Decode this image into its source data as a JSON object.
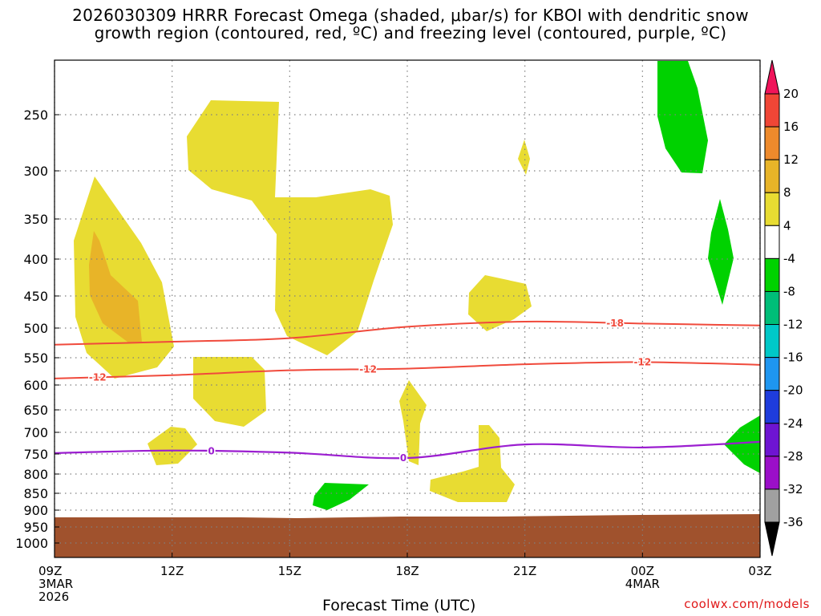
{
  "title": {
    "line1": "2026030309 HRRR Forecast Omega (shaded, μbar/s) for KBOI with dendritic snow",
    "line2": "growth region (contoured, red, ºC) and freezing level (contoured, purple, ºC)"
  },
  "x_axis_title": "Forecast Time (UTC)",
  "credit": "coolwx.com/models",
  "colors": {
    "dendritic_line": "#f04a3c",
    "freezing_line": "#9b1ed0",
    "ground": "#a0522d",
    "grid": "#808080"
  },
  "chart_data": {
    "type": "contour",
    "x_range_hours": [
      0,
      18
    ],
    "x_ticks": [
      {
        "hour": 0,
        "label": "09Z",
        "sub": [
          "3MAR",
          "2026"
        ]
      },
      {
        "hour": 3,
        "label": "12Z",
        "sub": []
      },
      {
        "hour": 6,
        "label": "15Z",
        "sub": []
      },
      {
        "hour": 9,
        "label": "18Z",
        "sub": []
      },
      {
        "hour": 12,
        "label": "21Z",
        "sub": []
      },
      {
        "hour": 15,
        "label": "00Z",
        "sub": [
          "4MAR"
        ]
      },
      {
        "hour": 18,
        "label": "03Z",
        "sub": []
      }
    ],
    "y_axis": "pressure (hPa)",
    "y_ticks": [
      250,
      300,
      350,
      400,
      450,
      500,
      550,
      600,
      650,
      700,
      750,
      800,
      850,
      900,
      950,
      1000
    ],
    "colorbar": {
      "levels": [
        20,
        16,
        12,
        8,
        4,
        -4,
        -8,
        -12,
        -16,
        -20,
        -24,
        -28,
        -32,
        -36
      ],
      "colors": [
        "#f0145a",
        "#f04636",
        "#ee8a2c",
        "#e8b428",
        "#e8dc32",
        "#ffffff",
        "#00d200",
        "#00be78",
        "#00c8c8",
        "#1e96f0",
        "#1e3cdc",
        "#6e14d2",
        "#9b0fc8",
        "#a0a0a0",
        "#000000"
      ]
    },
    "contours": {
      "dendritic": {
        "levels": [
          -18,
          -12
        ],
        "labels": [
          "-18",
          "-12"
        ],
        "minus18_pressure": [
          [
            0,
            528
          ],
          [
            3,
            523
          ],
          [
            6,
            517
          ],
          [
            9,
            498
          ],
          [
            12,
            490
          ],
          [
            15,
            493
          ],
          [
            18,
            496
          ]
        ],
        "minus12_pressure": [
          [
            0,
            588
          ],
          [
            3,
            582
          ],
          [
            6,
            573
          ],
          [
            9,
            570
          ],
          [
            12,
            562
          ],
          [
            15,
            558
          ],
          [
            18,
            563
          ]
        ]
      },
      "freezing": {
        "level": 0,
        "label": "0",
        "pressure": [
          [
            0,
            748
          ],
          [
            3,
            742
          ],
          [
            6,
            747
          ],
          [
            9,
            760
          ],
          [
            12,
            728
          ],
          [
            15,
            735
          ],
          [
            18,
            722
          ]
        ]
      }
    }
  }
}
